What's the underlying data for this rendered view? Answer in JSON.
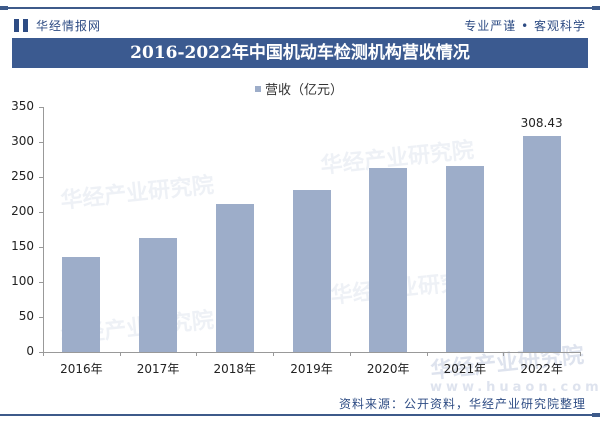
{
  "header": {
    "brand": "华经情报网",
    "slogan": "专业严谨 • 客观科学",
    "title": "2016-2022年中国机动车检测机构营收情况"
  },
  "legend": {
    "label": "营收（亿元）"
  },
  "watermark": {
    "text": "华经产业研究院",
    "site": "www.huaon.com"
  },
  "footer": {
    "source": "资料来源：公开资料，华经产业研究院整理"
  },
  "colors": {
    "bar": "#9dadc9",
    "title_bg": "#3b5a90",
    "brand": "#2e4c84"
  },
  "chart_data": {
    "type": "bar",
    "title": "2016-2022年中国机动车检测机构营收情况",
    "xlabel": "",
    "ylabel": "",
    "categories": [
      "2016年",
      "2017年",
      "2018年",
      "2019年",
      "2020年",
      "2021年",
      "2022年"
    ],
    "series": [
      {
        "name": "营收（亿元）",
        "values": [
          136,
          163,
          211,
          231,
          263,
          266,
          308.43
        ]
      }
    ],
    "data_labels": {
      "2022年": "308.43"
    },
    "yticks": [
      "0",
      "50",
      "100",
      "150",
      "200",
      "250",
      "300",
      "350"
    ],
    "ylim": [
      0,
      350
    ],
    "grid": false,
    "legend_position": "top-center"
  }
}
